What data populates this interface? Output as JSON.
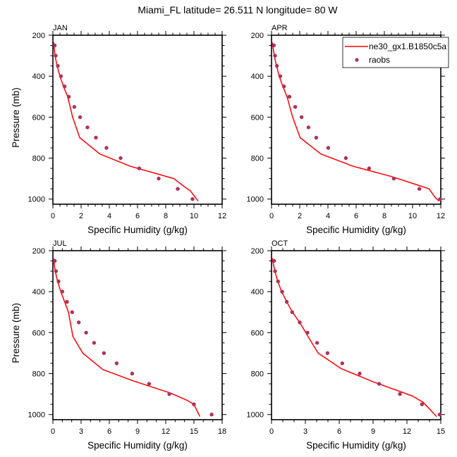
{
  "figure": {
    "title": "Miami_FL  latitude= 26.511 N longitude= 80 W"
  },
  "legend": {
    "model_label": "ne30_gx1.B1850c5a",
    "obs_label": "raobs",
    "model_color": "#ff0000",
    "obs_color": "#b0305e",
    "placement": "top-right of APR panel"
  },
  "chart_data": [
    {
      "type": "line",
      "panel": "JAN",
      "title": "JAN",
      "xlabel": "Specific Humidity (g/kg)",
      "ylabel": "Pressure (mb)",
      "xlim": [
        0,
        12
      ],
      "ylim": [
        1025,
        200
      ],
      "y_inverted": true,
      "xticks": [
        0,
        2,
        4,
        6,
        8,
        10,
        12
      ],
      "x_minor_step": 0.5,
      "yticks": [
        200,
        400,
        600,
        800,
        1000
      ],
      "y_minor_step": 50,
      "grid": false,
      "series": [
        {
          "name": "ne30_gx1.B1850c5a",
          "style": "line",
          "x": [
            0.05,
            0.15,
            0.3,
            0.5,
            0.75,
            1.05,
            1.4,
            1.9,
            3.33,
            5.5,
            8.58,
            9.33,
            9.75,
            10.3
          ],
          "pressure": [
            235,
            300,
            350,
            400,
            450,
            500,
            600,
            700,
            780,
            840,
            900,
            940,
            960,
            1010
          ]
        },
        {
          "name": "raobs",
          "style": "markers",
          "x": [
            0.13,
            0.2,
            0.35,
            0.57,
            0.83,
            1.13,
            1.52,
            1.93,
            2.45,
            3.05,
            3.8,
            4.8,
            6.12,
            7.5,
            8.85,
            9.9
          ],
          "pressure": [
            250,
            300,
            350,
            400,
            450,
            500,
            550,
            600,
            650,
            700,
            750,
            800,
            850,
            900,
            950,
            1000
          ]
        }
      ]
    },
    {
      "type": "line",
      "panel": "APR",
      "title": "APR",
      "xlabel": "Specific Humidity (g/kg)",
      "ylabel": "",
      "xlim": [
        0,
        12
      ],
      "ylim": [
        1025,
        200
      ],
      "y_inverted": true,
      "xticks": [
        0,
        2,
        4,
        6,
        8,
        10,
        12
      ],
      "x_minor_step": 0.5,
      "yticks": [
        200,
        400,
        600,
        800,
        1000
      ],
      "y_minor_step": 50,
      "grid": false,
      "series": [
        {
          "name": "ne30_gx1.B1850c5a",
          "style": "line",
          "x": [
            0.05,
            0.2,
            0.35,
            0.55,
            0.8,
            1.1,
            1.5,
            2.03,
            3.5,
            5.8,
            8.5,
            10.3,
            11.17,
            11.58,
            11.87
          ],
          "pressure": [
            235,
            300,
            350,
            400,
            450,
            500,
            600,
            700,
            780,
            840,
            890,
            930,
            950,
            990,
            1010
          ]
        },
        {
          "name": "raobs",
          "style": "markers",
          "x": [
            0.17,
            0.25,
            0.38,
            0.62,
            0.88,
            1.27,
            1.68,
            2.13,
            2.62,
            3.17,
            4.02,
            5.27,
            6.92,
            8.67,
            10.48,
            11.95
          ],
          "pressure": [
            250,
            300,
            350,
            400,
            450,
            500,
            550,
            600,
            650,
            700,
            750,
            800,
            850,
            900,
            950,
            1000
          ]
        }
      ]
    },
    {
      "type": "line",
      "panel": "JUL",
      "title": "JUL",
      "xlabel": "Specific Humidity (g/kg)",
      "ylabel": "Pressure (mb)",
      "xlim": [
        0,
        18
      ],
      "ylim": [
        1025,
        200
      ],
      "y_inverted": true,
      "xticks": [
        0,
        3,
        6,
        9,
        12,
        15,
        18
      ],
      "x_minor_step": 1,
      "yticks": [
        200,
        400,
        600,
        800,
        1000
      ],
      "y_minor_step": 50,
      "grid": false,
      "series": [
        {
          "name": "ne30_gx1.B1850c5a",
          "style": "line",
          "x": [
            0.05,
            0.25,
            0.5,
            0.85,
            1.25,
            1.65,
            2.13,
            3.18,
            5.3,
            8.5,
            12.5,
            14.25,
            15.0,
            15.63
          ],
          "pressure": [
            235,
            300,
            350,
            400,
            450,
            500,
            619,
            700,
            780,
            835,
            895,
            930,
            950,
            1010
          ]
        },
        {
          "name": "raobs",
          "style": "markers",
          "x": [
            0.2,
            0.33,
            0.6,
            1.0,
            1.5,
            2.05,
            2.75,
            3.53,
            4.38,
            5.43,
            6.78,
            8.43,
            10.23,
            12.38,
            15.0,
            16.88
          ],
          "pressure": [
            250,
            300,
            350,
            400,
            450,
            500,
            550,
            600,
            650,
            700,
            750,
            800,
            850,
            900,
            950,
            1000
          ]
        }
      ]
    },
    {
      "type": "line",
      "panel": "OCT",
      "title": "OCT",
      "xlabel": "Specific Humidity (g/kg)",
      "ylabel": "",
      "xlim": [
        0,
        15
      ],
      "ylim": [
        1025,
        200
      ],
      "y_inverted": true,
      "xticks": [
        0,
        3,
        6,
        9,
        12,
        15
      ],
      "x_minor_step": 1,
      "yticks": [
        200,
        400,
        600,
        800,
        1000
      ],
      "y_minor_step": 50,
      "grid": false,
      "series": [
        {
          "name": "ne30_gx1.B1850c5a",
          "style": "line",
          "x": [
            0.05,
            0.3,
            0.55,
            0.9,
            1.35,
            1.85,
            2.5,
            3.25,
            4.13,
            6.15,
            9.0,
            12.5,
            13.44,
            14.64
          ],
          "pressure": [
            235,
            300,
            350,
            400,
            450,
            500,
            550,
            620,
            700,
            775,
            840,
            910,
            940,
            1010
          ]
        },
        {
          "name": "raobs",
          "style": "markers",
          "x": [
            0.23,
            0.31,
            0.58,
            0.94,
            1.35,
            1.83,
            2.5,
            3.19,
            4.04,
            4.96,
            6.27,
            7.81,
            9.54,
            11.38,
            13.33,
            14.9
          ],
          "pressure": [
            250,
            300,
            350,
            400,
            450,
            500,
            550,
            600,
            650,
            700,
            750,
            800,
            850,
            900,
            950,
            1000
          ]
        }
      ]
    }
  ]
}
